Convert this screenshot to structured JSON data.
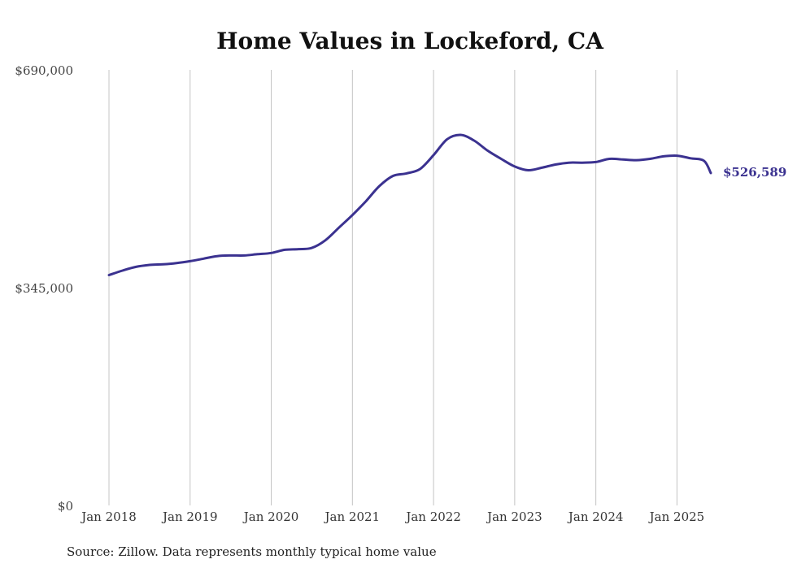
{
  "chart_data": {
    "type": "line",
    "title": "Home Values in Lockeford, CA",
    "source": "Source: Zillow. Data represents monthly typical home value",
    "y_ticks": [
      {
        "value": 0,
        "label": "$0"
      },
      {
        "value": 345000,
        "label": "$345,000"
      },
      {
        "value": 690000,
        "label": "$690,000"
      }
    ],
    "x_ticks": [
      {
        "value": "2018-01",
        "label": "Jan 2018"
      },
      {
        "value": "2019-01",
        "label": "Jan 2019"
      },
      {
        "value": "2020-01",
        "label": "Jan 2020"
      },
      {
        "value": "2021-01",
        "label": "Jan 2021"
      },
      {
        "value": "2022-01",
        "label": "Jan 2022"
      },
      {
        "value": "2023-01",
        "label": "Jan 2023"
      },
      {
        "value": "2024-01",
        "label": "Jan 2024"
      },
      {
        "value": "2025-01",
        "label": "Jan 2025"
      }
    ],
    "xlim": [
      "2018-01",
      "2025-06"
    ],
    "ylim": [
      0,
      690000
    ],
    "grid": "vertical",
    "line_color": "#3b3290",
    "end_label": "$526,589",
    "series": [
      {
        "points": [
          [
            "2018-01",
            365000
          ],
          [
            "2018-03",
            372000
          ],
          [
            "2018-05",
            378000
          ],
          [
            "2018-07",
            381000
          ],
          [
            "2018-09",
            382000
          ],
          [
            "2018-11",
            384000
          ],
          [
            "2019-01",
            387000
          ],
          [
            "2019-03",
            391000
          ],
          [
            "2019-05",
            395000
          ],
          [
            "2019-07",
            396000
          ],
          [
            "2019-09",
            396000
          ],
          [
            "2019-11",
            398000
          ],
          [
            "2020-01",
            400000
          ],
          [
            "2020-03",
            405000
          ],
          [
            "2020-05",
            406000
          ],
          [
            "2020-07",
            408000
          ],
          [
            "2020-09",
            420000
          ],
          [
            "2020-11",
            440000
          ],
          [
            "2021-01",
            460000
          ],
          [
            "2021-03",
            482000
          ],
          [
            "2021-05",
            506000
          ],
          [
            "2021-07",
            522000
          ],
          [
            "2021-09",
            526000
          ],
          [
            "2021-11",
            533000
          ],
          [
            "2022-01",
            555000
          ],
          [
            "2022-03",
            580000
          ],
          [
            "2022-05",
            587000
          ],
          [
            "2022-07",
            578000
          ],
          [
            "2022-09",
            562000
          ],
          [
            "2022-11",
            549000
          ],
          [
            "2023-01",
            537000
          ],
          [
            "2023-03",
            531000
          ],
          [
            "2023-05",
            535000
          ],
          [
            "2023-07",
            540000
          ],
          [
            "2023-09",
            543000
          ],
          [
            "2023-11",
            543000
          ],
          [
            "2024-01",
            544000
          ],
          [
            "2024-03",
            549000
          ],
          [
            "2024-05",
            548000
          ],
          [
            "2024-07",
            547000
          ],
          [
            "2024-09",
            549000
          ],
          [
            "2024-11",
            553000
          ],
          [
            "2025-01",
            554000
          ],
          [
            "2025-03",
            550000
          ],
          [
            "2025-05",
            546000
          ],
          [
            "2025-06",
            526589
          ]
        ]
      }
    ]
  }
}
